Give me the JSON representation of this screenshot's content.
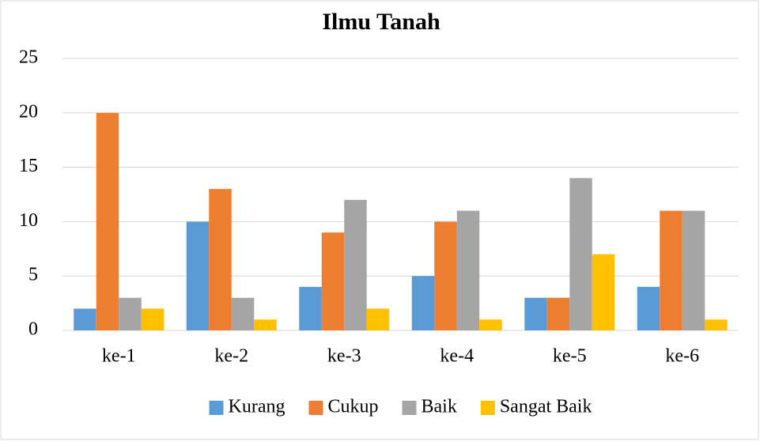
{
  "chart_data": {
    "type": "bar",
    "title": "Ilmu Tanah",
    "categories": [
      "ke-1",
      "ke-2",
      "ke-3",
      "ke-4",
      "ke-5",
      "ke-6"
    ],
    "series": [
      {
        "name": "Kurang",
        "color": "#5b9bd5",
        "values": [
          2,
          10,
          4,
          5,
          3,
          4
        ]
      },
      {
        "name": "Cukup",
        "color": "#ed7d31",
        "values": [
          20,
          13,
          9,
          10,
          3,
          11
        ]
      },
      {
        "name": "Baik",
        "color": "#a5a5a5",
        "values": [
          3,
          3,
          12,
          11,
          14,
          11
        ]
      },
      {
        "name": "Sangat Baik",
        "color": "#ffc000",
        "values": [
          2,
          1,
          2,
          1,
          7,
          1
        ]
      }
    ],
    "ylim": [
      0,
      25
    ],
    "yticks": [
      0,
      5,
      10,
      15,
      20,
      25
    ],
    "grid": true,
    "legend": "bottom"
  }
}
